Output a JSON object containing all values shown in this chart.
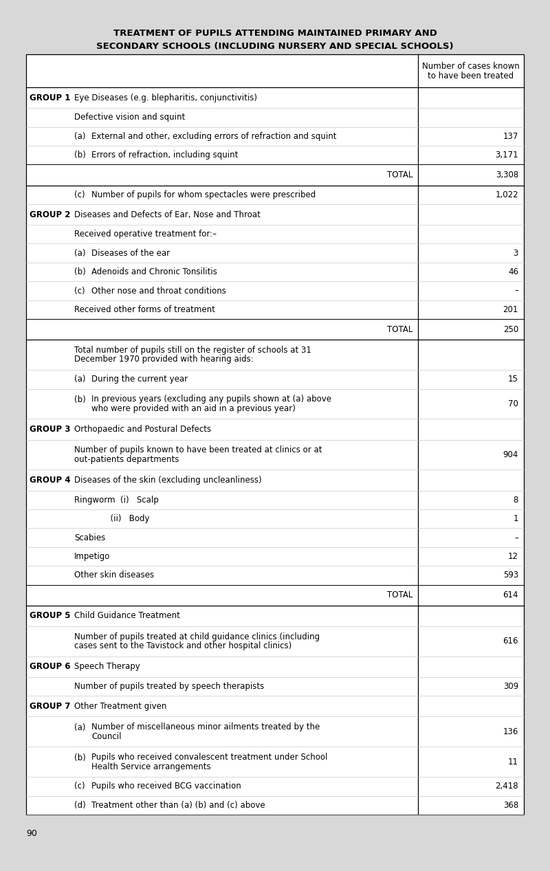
{
  "title_line1": "TREATMENT OF PUPILS ATTENDING MAINTAINED PRIMARY AND",
  "title_line2": "SECONDARY SCHOOLS (INCLUDING NURSERY AND SPECIAL SCHOOLS)",
  "bg_color": "#d8d8d8",
  "rows": [
    {
      "type": "header_spacer"
    },
    {
      "type": "group_row",
      "group": "GROUP 1",
      "label": "Eye Diseases (e.g. blepharitis, conjunctivitis)",
      "value": ""
    },
    {
      "type": "sub_row",
      "group": "",
      "label": "Defective vision and squint",
      "value": ""
    },
    {
      "type": "item_row",
      "group": "",
      "letter": "(a)",
      "label": "External and other, excluding errors of refraction and squint",
      "value": "137"
    },
    {
      "type": "item_row",
      "group": "",
      "letter": "(b)",
      "label": "Errors of refraction, including squint",
      "value": "3,171"
    },
    {
      "type": "total_row",
      "group": "",
      "label": "TOTAL",
      "value": "3,308"
    },
    {
      "type": "item_row",
      "group": "",
      "letter": "(c)",
      "label": "Number of pupils for whom spectacles were prescribed",
      "value": "1,022"
    },
    {
      "type": "group_row",
      "group": "GROUP 2",
      "label": "Diseases and Defects of Ear, Nose and Throat",
      "value": ""
    },
    {
      "type": "sub_row",
      "group": "",
      "label": "Received operative treatment for:–",
      "value": ""
    },
    {
      "type": "item_row",
      "group": "",
      "letter": "(a)",
      "label": "Diseases of the ear",
      "value": "3"
    },
    {
      "type": "item_row",
      "group": "",
      "letter": "(b)",
      "label": "Adenoids and Chronic Tonsilitis",
      "value": "46"
    },
    {
      "type": "item_row",
      "group": "",
      "letter": "(c)",
      "label": "Other nose and throat conditions",
      "value": "–"
    },
    {
      "type": "sub_row",
      "group": "",
      "label": "Received other forms of treatment",
      "value": "201"
    },
    {
      "type": "total_row",
      "group": "",
      "label": "TOTAL",
      "value": "250"
    },
    {
      "type": "ml2_row",
      "group": "",
      "letter": "",
      "label": "Total number of pupils still on the register of schools at 31\nDecember 1970 provided with hearing aids:",
      "value": ""
    },
    {
      "type": "item_row",
      "group": "",
      "letter": "(a)",
      "label": "During the current year",
      "value": "15"
    },
    {
      "type": "ml2_row",
      "group": "",
      "letter": "(b)",
      "label": "In previous years (excluding any pupils shown at (a) above\nwho were provided with an aid in a previous year)",
      "value": "70"
    },
    {
      "type": "group_row",
      "group": "GROUP 3",
      "label": "Orthopaedic and Postural Defects",
      "value": ""
    },
    {
      "type": "ml2_row",
      "group": "",
      "letter": "",
      "label": "Number of pupils known to have been treated at clinics or at\nout-patients departments",
      "value": "904"
    },
    {
      "type": "group_row",
      "group": "GROUP 4",
      "label": "Diseases of the skin (excluding uncleanliness)",
      "value": ""
    },
    {
      "type": "item_row",
      "group": "",
      "letter": "",
      "label": "Ringworm  (i)   Scalp",
      "value": "8"
    },
    {
      "type": "item_row",
      "group": "",
      "letter": "",
      "label": "              (ii)   Body",
      "value": "1"
    },
    {
      "type": "item_row",
      "group": "",
      "letter": "",
      "label": "Scabies",
      "value": "–"
    },
    {
      "type": "item_row",
      "group": "",
      "letter": "",
      "label": "Impetigo",
      "value": "12"
    },
    {
      "type": "item_row",
      "group": "",
      "letter": "",
      "label": "Other skin diseases",
      "value": "593"
    },
    {
      "type": "total_row",
      "group": "",
      "label": "TOTAL",
      "value": "614"
    },
    {
      "type": "group_row",
      "group": "GROUP 5",
      "label": "Child Guidance Treatment",
      "value": ""
    },
    {
      "type": "ml2_row",
      "group": "",
      "letter": "",
      "label": "Number of pupils treated at child guidance clinics (including\ncases sent to the Tavistock and other hospital clinics)",
      "value": "616"
    },
    {
      "type": "group_row",
      "group": "GROUP 6",
      "label": "Speech Therapy",
      "value": ""
    },
    {
      "type": "item_row",
      "group": "",
      "letter": "",
      "label": "Number of pupils treated by speech therapists",
      "value": "309"
    },
    {
      "type": "group_row",
      "group": "GROUP 7",
      "label": "Other Treatment given",
      "value": ""
    },
    {
      "type": "ml2_row",
      "group": "",
      "letter": "(a)",
      "label": "Number of miscellaneous minor ailments treated by the\nCouncil",
      "value": "136"
    },
    {
      "type": "ml2_row",
      "group": "",
      "letter": "(b)",
      "label": "Pupils who received convalescent treatment under School\nHealth Service arrangements",
      "value": "11"
    },
    {
      "type": "item_row",
      "group": "",
      "letter": "(c)",
      "label": "Pupils who received BCG vaccination",
      "value": "2,418"
    },
    {
      "type": "item_row",
      "group": "",
      "letter": "(d)",
      "label": "Treatment other than (a) (b) and (c) above",
      "value": "368"
    }
  ],
  "page_number": "90"
}
